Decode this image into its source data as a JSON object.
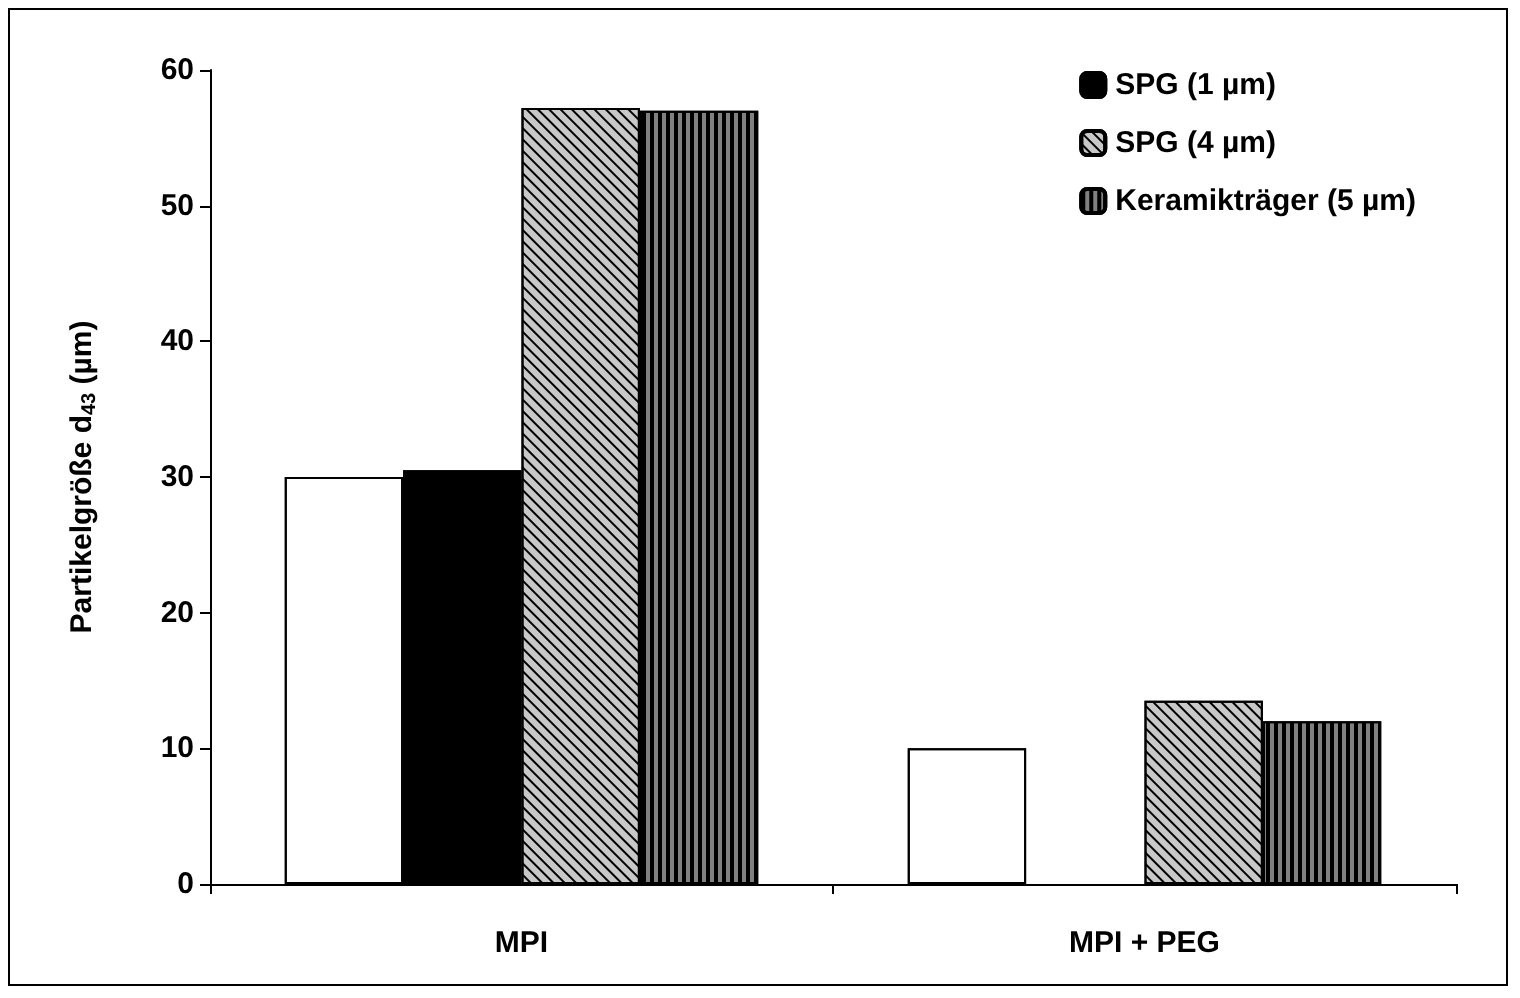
{
  "chart_data": {
    "type": "bar",
    "ylabel": "Partikelgröße d$_{43}$ (µm)",
    "categories": [
      "MPI",
      "MPI + PEG"
    ],
    "series": [
      {
        "color": "#ffffff",
        "values": [
          30,
          10
        ]
      },
      {
        "name": "SPG (1 µm)",
        "color": "#000000",
        "values": [
          30.5,
          null
        ]
      },
      {
        "name": "SPG (4 µm)",
        "color": "#c8c8c8",
        "values": [
          57.2,
          13.5
        ]
      },
      {
        "name": "Keramikträger (5 µm)",
        "color": "#808080",
        "values": [
          57,
          12
        ]
      }
    ],
    "ylim": [
      0,
      60
    ],
    "yticks": [
      0,
      10,
      20,
      30,
      40,
      50,
      60
    ],
    "grid": false,
    "legend": "top right"
  }
}
